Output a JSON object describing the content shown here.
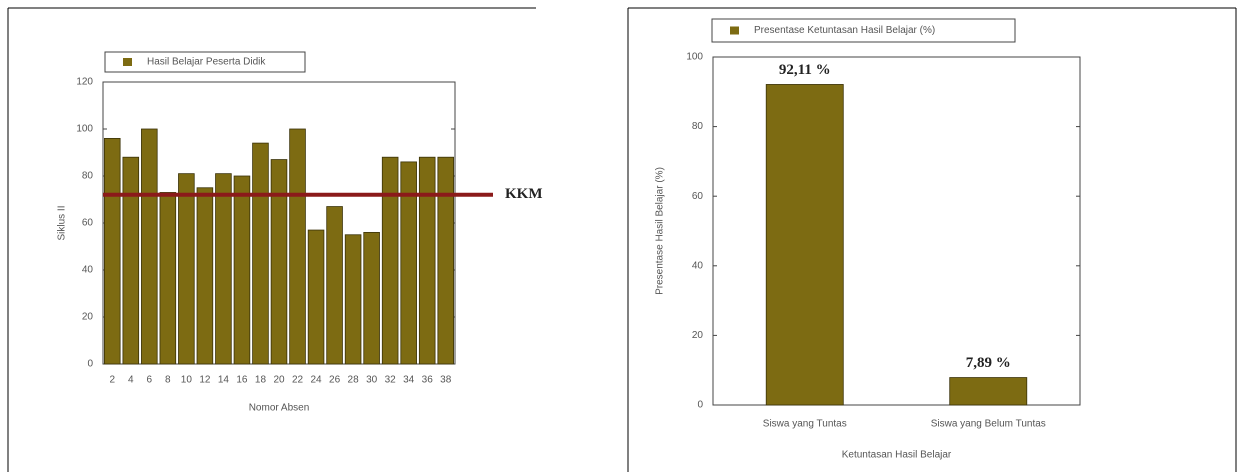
{
  "chart_data": [
    {
      "type": "bar",
      "legend": "Hasil Belajar Peserta Didik",
      "x_label": "Nomor Absen",
      "y_label": "Siklus II",
      "categories": [
        "2",
        "4",
        "6",
        "8",
        "10",
        "12",
        "14",
        "16",
        "18",
        "20",
        "22",
        "24",
        "26",
        "28",
        "30",
        "32",
        "34",
        "36",
        "38"
      ],
      "values": [
        96,
        88,
        100,
        73,
        81,
        75,
        81,
        80,
        94,
        87,
        100,
        57,
        67,
        55,
        56,
        88,
        86,
        88,
        88
      ],
      "color": "#7d6b12",
      "ylim": [
        0,
        120
      ],
      "yticks": [
        0,
        20,
        40,
        60,
        80,
        100,
        120
      ],
      "reference_line": {
        "value": 72,
        "label": "KKM",
        "color": "#8b1a1a"
      }
    },
    {
      "type": "bar",
      "legend": "Presentase Ketuntasan Hasil Belajar (%)",
      "x_label": "Ketuntasan Hasil Belajar",
      "y_label": "Presentase Hasil Belajar (%)",
      "categories": [
        "Siswa yang Tuntas",
        "Siswa yang Belum Tuntas"
      ],
      "values": [
        92.11,
        7.89
      ],
      "value_labels": [
        "92,11 %",
        "7,89 %"
      ],
      "color": "#7d6b12",
      "ylim": [
        0,
        100
      ],
      "yticks": [
        0,
        20,
        40,
        60,
        80,
        100
      ]
    }
  ]
}
